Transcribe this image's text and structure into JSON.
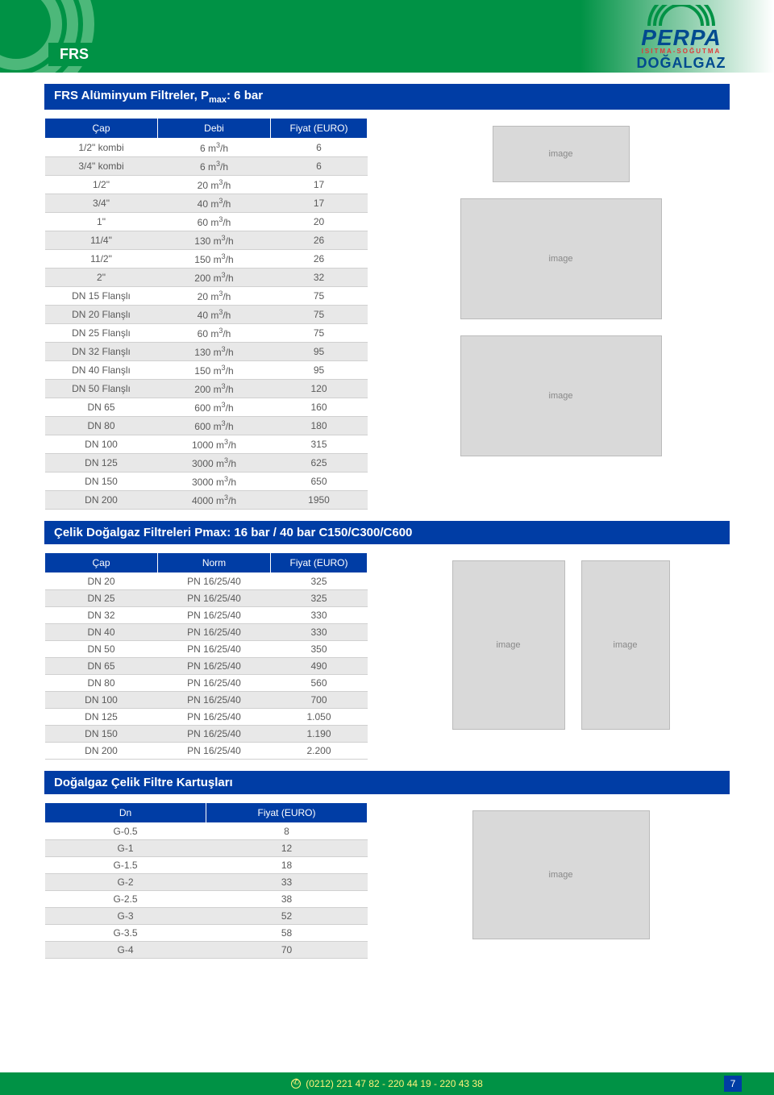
{
  "header": {
    "tab_label": "FRS",
    "logo_name": "PERPA",
    "logo_sub": "ISITMA-SOĞUTMA",
    "logo_gas": "DOĞALGAZ"
  },
  "section1": {
    "title_prefix": "FRS Alüminyum Filtreler, P",
    "title_sub": "max",
    "title_suffix": ": 6 bar",
    "columns": [
      "Çap",
      "Debi",
      "Fiyat (EURO)"
    ],
    "rows": [
      {
        "cap": "1/2\" kombi",
        "debi": "6 m³/h",
        "fiyat": "6"
      },
      {
        "cap": "3/4\" kombi",
        "debi": "6 m³/h",
        "fiyat": "6"
      },
      {
        "cap": "1/2\"",
        "debi": "20 m³/h",
        "fiyat": "17"
      },
      {
        "cap": "3/4\"",
        "debi": "40 m³/h",
        "fiyat": "17"
      },
      {
        "cap": "1\"",
        "debi": "60 m³/h",
        "fiyat": "20"
      },
      {
        "cap": "11/4\"",
        "debi": "130 m³/h",
        "fiyat": "26"
      },
      {
        "cap": "11/2\"",
        "debi": "150 m³/h",
        "fiyat": "26"
      },
      {
        "cap": "2\"",
        "debi": "200 m³/h",
        "fiyat": "32"
      },
      {
        "cap": "DN 15 Flanşlı",
        "debi": "20 m³/h",
        "fiyat": "75"
      },
      {
        "cap": "DN 20 Flanşlı",
        "debi": "40 m³/h",
        "fiyat": "75"
      },
      {
        "cap": "DN 25 Flanşlı",
        "debi": "60 m³/h",
        "fiyat": "75"
      },
      {
        "cap": "DN 32 Flanşlı",
        "debi": "130 m³/h",
        "fiyat": "95"
      },
      {
        "cap": "DN 40 Flanşlı",
        "debi": "150 m³/h",
        "fiyat": "95"
      },
      {
        "cap": "DN 50 Flanşlı",
        "debi": "200 m³/h",
        "fiyat": "120"
      },
      {
        "cap": "DN 65",
        "debi": "600 m³/h",
        "fiyat": "160"
      },
      {
        "cap": "DN 80",
        "debi": "600 m³/h",
        "fiyat": "180"
      },
      {
        "cap": "DN 100",
        "debi": "1000 m³/h",
        "fiyat": "315"
      },
      {
        "cap": "DN 125",
        "debi": "3000 m³/h",
        "fiyat": "625"
      },
      {
        "cap": "DN 150",
        "debi": "3000 m³/h",
        "fiyat": "650"
      },
      {
        "cap": "DN 200",
        "debi": "4000 m³/h",
        "fiyat": "1950"
      }
    ]
  },
  "section2": {
    "title": "Çelik Doğalgaz Filtreleri Pmax: 16 bar / 40 bar   C150/C300/C600",
    "columns": [
      "Çap",
      "Norm",
      "Fiyat (EURO)"
    ],
    "rows": [
      {
        "cap": "DN 20",
        "norm": "PN 16/25/40",
        "fiyat": "325"
      },
      {
        "cap": "DN 25",
        "norm": "PN 16/25/40",
        "fiyat": "325"
      },
      {
        "cap": "DN 32",
        "norm": "PN 16/25/40",
        "fiyat": "330"
      },
      {
        "cap": "DN 40",
        "norm": "PN 16/25/40",
        "fiyat": "330"
      },
      {
        "cap": "DN 50",
        "norm": "PN 16/25/40",
        "fiyat": "350"
      },
      {
        "cap": "DN 65",
        "norm": "PN 16/25/40",
        "fiyat": "490"
      },
      {
        "cap": "DN 80",
        "norm": "PN 16/25/40",
        "fiyat": "560"
      },
      {
        "cap": "DN 100",
        "norm": "PN 16/25/40",
        "fiyat": "700"
      },
      {
        "cap": "DN 125",
        "norm": "PN 16/25/40",
        "fiyat": "1.050"
      },
      {
        "cap": "DN 150",
        "norm": "PN 16/25/40",
        "fiyat": "1.190"
      },
      {
        "cap": "DN 200",
        "norm": "PN 16/25/40",
        "fiyat": "2.200"
      }
    ]
  },
  "section3": {
    "title": "Doğalgaz Çelik Filtre Kartuşları",
    "columns": [
      "Dn",
      "Fiyat (EURO)"
    ],
    "rows": [
      {
        "dn": "G-0.5",
        "fiyat": "8"
      },
      {
        "dn": "G-1",
        "fiyat": "12"
      },
      {
        "dn": "G-1.5",
        "fiyat": "18"
      },
      {
        "dn": "G-2",
        "fiyat": "33"
      },
      {
        "dn": "G-2.5",
        "fiyat": "38"
      },
      {
        "dn": "G-3",
        "fiyat": "52"
      },
      {
        "dn": "G-3.5",
        "fiyat": "58"
      },
      {
        "dn": "G-4",
        "fiyat": "70"
      }
    ]
  },
  "footer": {
    "phones": "(0212) 221 47 82 - 220 44 19 - 220 43 38",
    "page_num": "7"
  },
  "style": {
    "banner_green": "#009245",
    "title_blue": "#003da5",
    "row_alt_bg": "#e8e8e8",
    "text_color": "#5a5a5a",
    "footer_text": "#fff27a",
    "table1_col_widths": [
      140,
      140,
      120
    ],
    "table2_col_widths": [
      140,
      140,
      120
    ],
    "table3_col_widths": [
      200,
      200
    ]
  }
}
